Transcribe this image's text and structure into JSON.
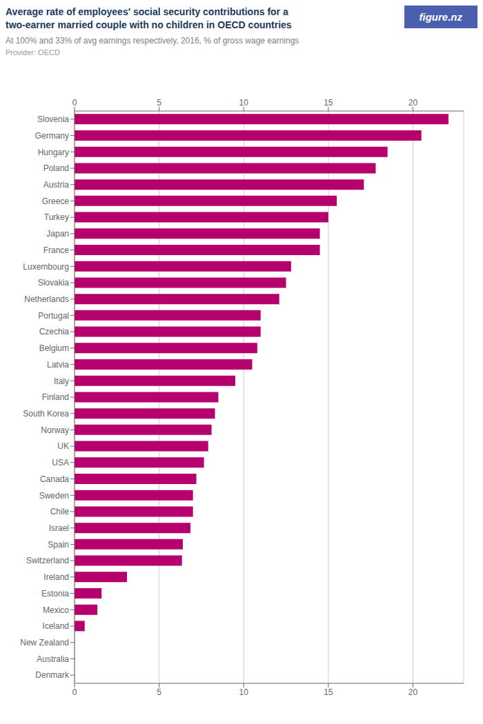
{
  "chart_data": {
    "type": "bar",
    "orientation": "horizontal",
    "title": "Average rate of employees' social security contributions for a\ntwo-earner married couple with no children in OECD countries",
    "subtitle": "At 100% and 33% of avg earnings respectively, 2016, % of gross wage earnings",
    "annotations": [
      "Provider: OECD",
      "figure.nz"
    ],
    "categories": [
      "Slovenia",
      "Germany",
      "Hungary",
      "Poland",
      "Austria",
      "Greece",
      "Turkey",
      "Japan",
      "France",
      "Luxembourg",
      "Slovakia",
      "Netherlands",
      "Portugal",
      "Czechia",
      "Belgium",
      "Latvia",
      "Italy",
      "Finland",
      "South Korea",
      "Norway",
      "UK",
      "USA",
      "Canada",
      "Sweden",
      "Chile",
      "Israel",
      "Spain",
      "Switzerland",
      "Ireland",
      "Estonia",
      "Mexico",
      "Iceland",
      "New Zealand",
      "Australia",
      "Denmark"
    ],
    "values": [
      22.1,
      20.5,
      18.5,
      17.8,
      17.1,
      15.5,
      15.0,
      14.5,
      14.5,
      12.8,
      12.5,
      12.1,
      11.0,
      11.0,
      10.8,
      10.5,
      9.5,
      8.5,
      8.3,
      8.1,
      7.9,
      7.65,
      7.2,
      7.0,
      7.0,
      6.85,
      6.4,
      6.35,
      3.1,
      1.6,
      1.35,
      0.6,
      0.0,
      0.0,
      0.0
    ],
    "color": "#b5006e",
    "xlim": [
      0,
      23
    ],
    "xticks": [
      0,
      5,
      10,
      15,
      20
    ],
    "grid": true
  }
}
